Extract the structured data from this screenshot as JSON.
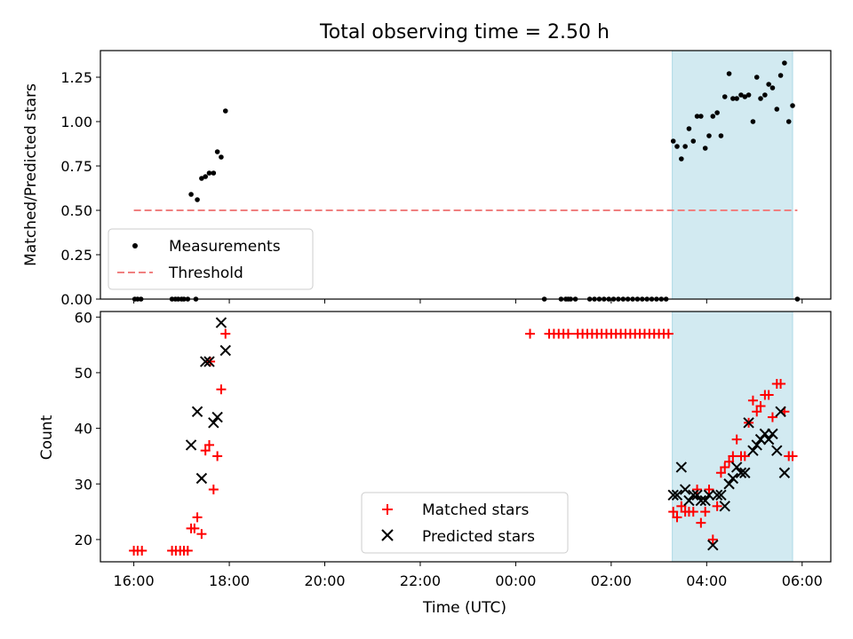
{
  "title": "Total observing time = 2.50 h",
  "colors": {
    "measurement": "#000000",
    "threshold": "#f08080",
    "matched": "#ff0000",
    "predicted": "#000000",
    "span": "#add8e6"
  },
  "chart_data": [
    {
      "type": "scatter",
      "ylabel": "Matched/Predicted stars",
      "xlim_hours": [
        15.3,
        30.6
      ],
      "ylim": [
        0,
        1.4
      ],
      "yticks": [
        "0.00",
        "0.25",
        "0.50",
        "0.75",
        "1.00",
        "1.25"
      ],
      "legend_position": "lower-left",
      "legend": [
        "Measurements",
        "Threshold"
      ],
      "highlight_span_hours": [
        27.28,
        29.8
      ],
      "threshold": {
        "value": 0.5,
        "x_hours": [
          16.0,
          29.9
        ]
      },
      "measurements": [
        [
          16.02,
          0
        ],
        [
          16.08,
          0
        ],
        [
          16.15,
          0
        ],
        [
          16.8,
          0
        ],
        [
          16.87,
          0
        ],
        [
          16.93,
          0
        ],
        [
          17.0,
          0
        ],
        [
          17.05,
          0
        ],
        [
          17.13,
          0
        ],
        [
          17.3,
          0
        ],
        [
          17.2,
          0.59
        ],
        [
          17.33,
          0.56
        ],
        [
          17.42,
          0.68
        ],
        [
          17.5,
          0.69
        ],
        [
          17.58,
          0.71
        ],
        [
          17.67,
          0.71
        ],
        [
          17.75,
          0.83
        ],
        [
          17.83,
          0.8
        ],
        [
          17.92,
          1.06
        ],
        [
          24.6,
          0
        ],
        [
          24.95,
          0
        ],
        [
          25.05,
          0
        ],
        [
          25.1,
          0
        ],
        [
          25.15,
          0
        ],
        [
          25.25,
          0
        ],
        [
          25.55,
          0
        ],
        [
          25.65,
          0
        ],
        [
          25.75,
          0
        ],
        [
          25.85,
          0
        ],
        [
          25.95,
          0
        ],
        [
          26.05,
          0
        ],
        [
          26.15,
          0
        ],
        [
          26.25,
          0
        ],
        [
          26.35,
          0
        ],
        [
          26.45,
          0
        ],
        [
          26.55,
          0
        ],
        [
          26.65,
          0
        ],
        [
          26.75,
          0
        ],
        [
          26.85,
          0
        ],
        [
          26.95,
          0
        ],
        [
          27.05,
          0
        ],
        [
          27.15,
          0
        ],
        [
          27.3,
          0.89
        ],
        [
          27.38,
          0.86
        ],
        [
          27.47,
          0.79
        ],
        [
          27.55,
          0.86
        ],
        [
          27.63,
          0.96
        ],
        [
          27.72,
          0.89
        ],
        [
          27.8,
          1.03
        ],
        [
          27.88,
          1.03
        ],
        [
          27.97,
          0.85
        ],
        [
          28.05,
          0.92
        ],
        [
          28.13,
          1.03
        ],
        [
          28.22,
          1.05
        ],
        [
          28.3,
          0.92
        ],
        [
          28.38,
          1.14
        ],
        [
          28.47,
          1.27
        ],
        [
          28.55,
          1.13
        ],
        [
          28.63,
          1.13
        ],
        [
          28.72,
          1.15
        ],
        [
          28.8,
          1.14
        ],
        [
          28.88,
          1.15
        ],
        [
          28.97,
          1.0
        ],
        [
          29.05,
          1.25
        ],
        [
          29.13,
          1.13
        ],
        [
          29.22,
          1.15
        ],
        [
          29.3,
          1.21
        ],
        [
          29.38,
          1.19
        ],
        [
          29.47,
          1.07
        ],
        [
          29.55,
          1.26
        ],
        [
          29.63,
          1.33
        ],
        [
          29.72,
          1.0
        ],
        [
          29.8,
          1.09
        ],
        [
          29.9,
          0
        ]
      ]
    },
    {
      "type": "scatter",
      "ylabel": "Count",
      "xlabel": "Time (UTC)",
      "xlim_hours": [
        15.3,
        30.6
      ],
      "xticks": [
        {
          "hour": 16,
          "label": "16:00"
        },
        {
          "hour": 18,
          "label": "18:00"
        },
        {
          "hour": 20,
          "label": "20:00"
        },
        {
          "hour": 22,
          "label": "22:00"
        },
        {
          "hour": 24,
          "label": "00:00"
        },
        {
          "hour": 26,
          "label": "02:00"
        },
        {
          "hour": 28,
          "label": "04:00"
        },
        {
          "hour": 30,
          "label": "06:00"
        }
      ],
      "ylim": [
        16,
        61
      ],
      "yticks": [
        "20",
        "30",
        "40",
        "50",
        "60"
      ],
      "legend_position": "lower-center",
      "legend": [
        "Matched stars",
        "Predicted stars"
      ],
      "highlight_span_hours": [
        27.28,
        29.8
      ],
      "matched": [
        [
          16.0,
          18
        ],
        [
          16.08,
          18
        ],
        [
          16.17,
          18
        ],
        [
          16.8,
          18
        ],
        [
          16.88,
          18
        ],
        [
          16.97,
          18
        ],
        [
          17.05,
          18
        ],
        [
          17.13,
          18
        ],
        [
          17.2,
          22
        ],
        [
          17.27,
          22
        ],
        [
          17.33,
          24
        ],
        [
          17.42,
          21
        ],
        [
          17.5,
          36
        ],
        [
          17.58,
          37
        ],
        [
          17.67,
          29
        ],
        [
          17.75,
          35
        ],
        [
          17.83,
          47
        ],
        [
          17.92,
          57
        ],
        [
          17.6,
          52
        ],
        [
          24.3,
          57
        ],
        [
          24.7,
          57
        ],
        [
          24.8,
          57
        ],
        [
          24.9,
          57
        ],
        [
          25.0,
          57
        ],
        [
          25.1,
          57
        ],
        [
          25.3,
          57
        ],
        [
          25.4,
          57
        ],
        [
          25.5,
          57
        ],
        [
          25.6,
          57
        ],
        [
          25.7,
          57
        ],
        [
          25.8,
          57
        ],
        [
          25.9,
          57
        ],
        [
          26.0,
          57
        ],
        [
          26.1,
          57
        ],
        [
          26.2,
          57
        ],
        [
          26.3,
          57
        ],
        [
          26.4,
          57
        ],
        [
          26.5,
          57
        ],
        [
          26.6,
          57
        ],
        [
          26.7,
          57
        ],
        [
          26.8,
          57
        ],
        [
          26.9,
          57
        ],
        [
          27.0,
          57
        ],
        [
          27.1,
          57
        ],
        [
          27.2,
          57
        ],
        [
          27.3,
          25
        ],
        [
          27.38,
          24
        ],
        [
          27.47,
          26
        ],
        [
          27.55,
          25
        ],
        [
          27.63,
          25
        ],
        [
          27.72,
          25
        ],
        [
          27.8,
          29
        ],
        [
          27.88,
          23
        ],
        [
          27.97,
          25
        ],
        [
          28.05,
          29
        ],
        [
          28.13,
          20
        ],
        [
          28.22,
          26
        ],
        [
          28.3,
          32
        ],
        [
          28.38,
          33
        ],
        [
          28.47,
          34
        ],
        [
          28.55,
          35
        ],
        [
          28.63,
          38
        ],
        [
          28.72,
          35
        ],
        [
          28.8,
          35
        ],
        [
          28.88,
          41
        ],
        [
          28.97,
          45
        ],
        [
          29.05,
          43
        ],
        [
          29.13,
          44
        ],
        [
          29.22,
          46
        ],
        [
          29.3,
          46
        ],
        [
          29.38,
          42
        ],
        [
          29.47,
          48
        ],
        [
          29.55,
          48
        ],
        [
          29.63,
          43
        ],
        [
          29.72,
          35
        ],
        [
          29.8,
          35
        ]
      ],
      "predicted": [
        [
          17.2,
          37
        ],
        [
          17.33,
          43
        ],
        [
          17.42,
          31
        ],
        [
          17.5,
          52
        ],
        [
          17.58,
          52
        ],
        [
          17.67,
          41
        ],
        [
          17.75,
          42
        ],
        [
          17.83,
          59
        ],
        [
          17.92,
          54
        ],
        [
          27.3,
          28
        ],
        [
          27.38,
          28
        ],
        [
          27.47,
          33
        ],
        [
          27.55,
          29
        ],
        [
          27.63,
          27
        ],
        [
          27.72,
          28
        ],
        [
          27.8,
          28
        ],
        [
          27.88,
          27
        ],
        [
          27.97,
          27
        ],
        [
          28.05,
          28
        ],
        [
          28.13,
          19
        ],
        [
          28.22,
          28
        ],
        [
          28.3,
          28
        ],
        [
          28.38,
          26
        ],
        [
          28.47,
          30
        ],
        [
          28.55,
          31
        ],
        [
          28.63,
          33
        ],
        [
          28.72,
          32
        ],
        [
          28.8,
          32
        ],
        [
          28.88,
          41
        ],
        [
          28.97,
          36
        ],
        [
          29.05,
          37
        ],
        [
          29.13,
          38
        ],
        [
          29.22,
          39
        ],
        [
          29.3,
          38
        ],
        [
          29.38,
          39
        ],
        [
          29.47,
          36
        ],
        [
          29.55,
          43
        ],
        [
          29.63,
          32
        ]
      ]
    }
  ]
}
